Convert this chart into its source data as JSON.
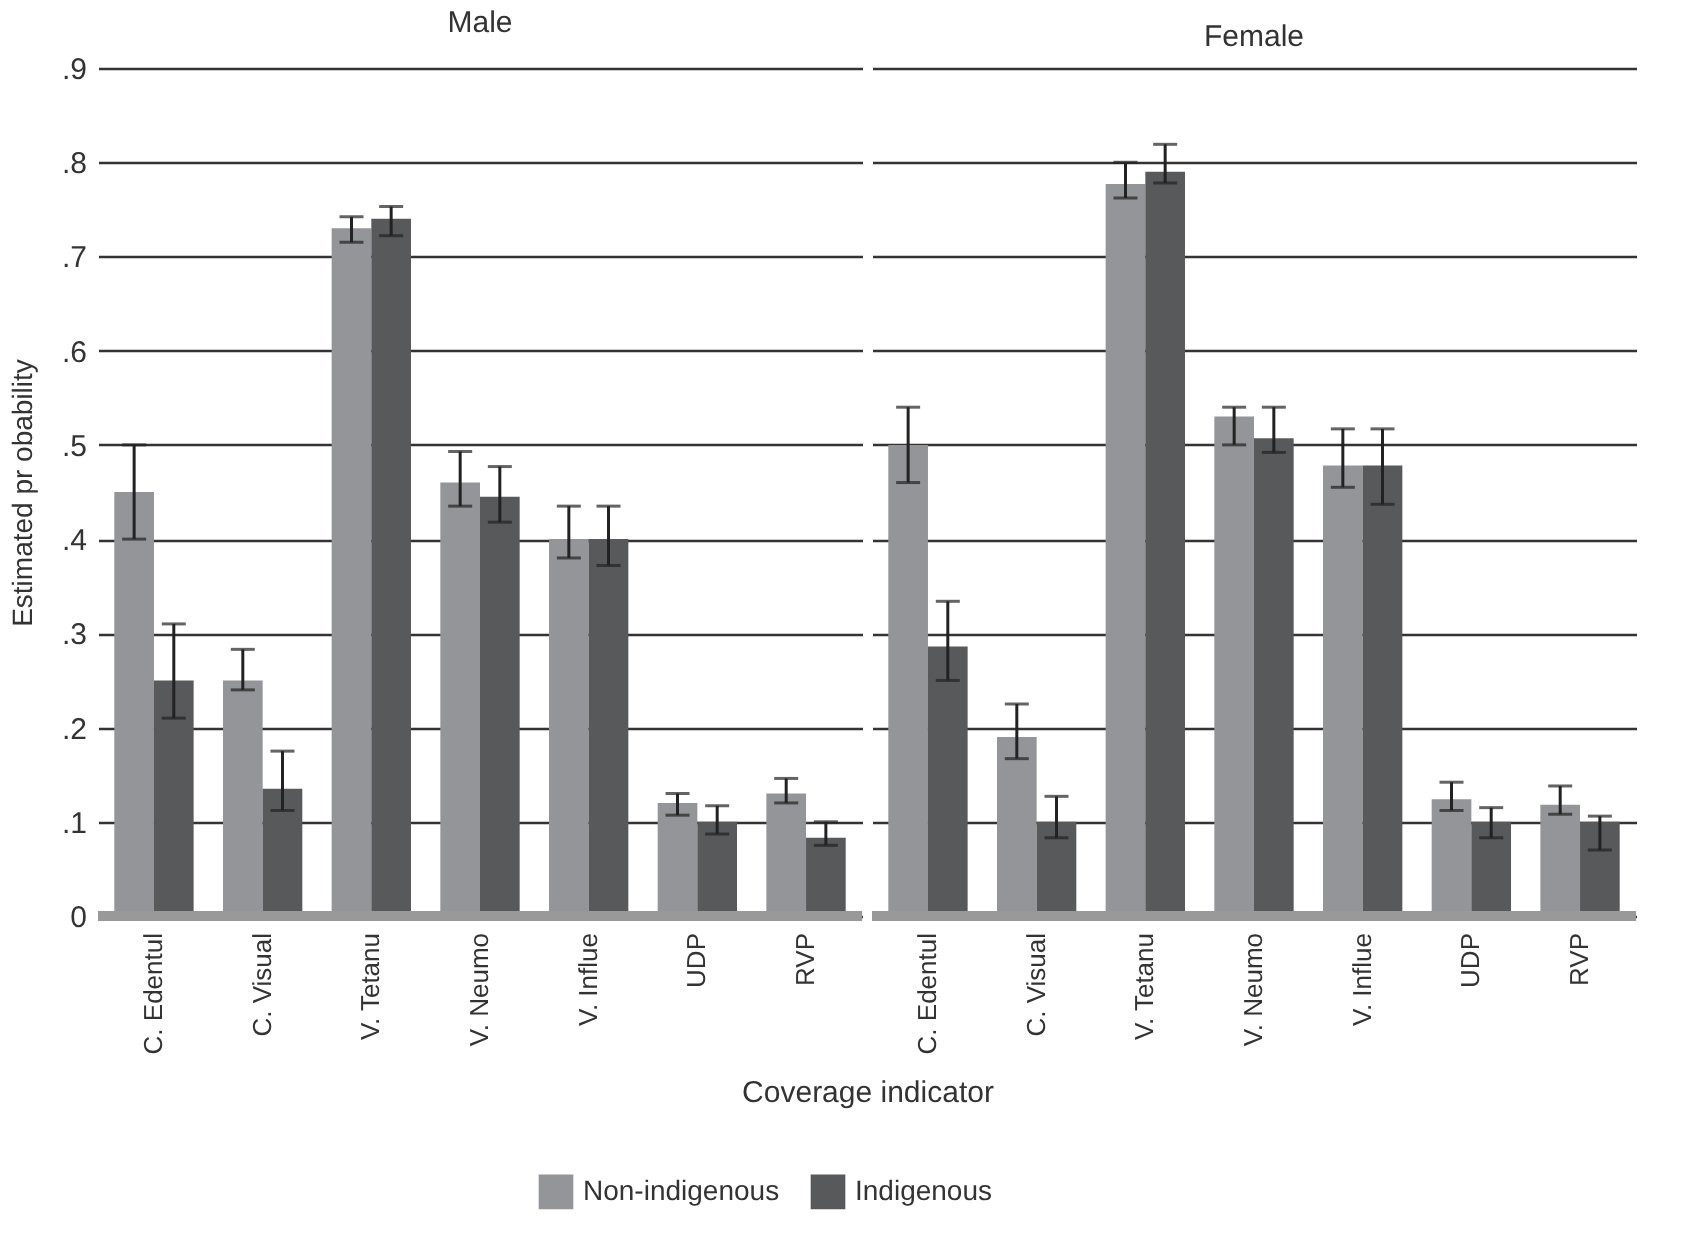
{
  "chart_data": [
    {
      "type": "bar",
      "title": "Male",
      "xlabel": "Coverage indicator",
      "ylabel": "Estimated pr obability",
      "categories": [
        "C. Edentul",
        "C. Visual",
        "V. Tetanu",
        "V. Neumo",
        "V. Influe",
        "UDP",
        "RVP"
      ],
      "series": [
        {
          "name": "Non-indigenous",
          "color": "#939598",
          "values": [
            0.45,
            0.25,
            0.73,
            0.46,
            0.4,
            0.12,
            0.13
          ],
          "errors": [
            [
              0.4,
              0.5
            ],
            [
              0.24,
              0.283
            ],
            [
              0.715,
              0.742
            ],
            [
              0.435,
              0.493
            ],
            [
              0.38,
              0.435
            ],
            [
              0.107,
              0.13
            ],
            [
              0.12,
              0.146
            ]
          ]
        },
        {
          "name": "Indigenous",
          "color": "#58595b",
          "values": [
            0.25,
            0.135,
            0.74,
            0.445,
            0.4,
            0.1,
            0.083
          ],
          "errors": [
            [
              0.21,
              0.31
            ],
            [
              0.112,
              0.175
            ],
            [
              0.722,
              0.753
            ],
            [
              0.418,
              0.477
            ],
            [
              0.372,
              0.435
            ],
            [
              0.087,
              0.117
            ],
            [
              0.075,
              0.1
            ]
          ]
        }
      ],
      "ylim": [
        0,
        0.9
      ],
      "yticks": [
        0,
        {
          "value": 0.1,
          "label": ".1"
        },
        {
          "value": 0.2,
          "label": ".2"
        },
        {
          "value": 0.3,
          "label": ".3"
        },
        {
          "value": 0.4,
          "label": ".4"
        },
        {
          "value": 0.5,
          "label": ".5"
        },
        {
          "value": 0.6,
          "label": ".6"
        },
        {
          "value": 0.7,
          "label": ".7"
        },
        {
          "value": 0.8,
          "label": ".8"
        },
        {
          "value": 0.9,
          "label": ".9"
        }
      ],
      "grid": "y",
      "legend": "bottom"
    },
    {
      "type": "bar",
      "title": "Female",
      "categories": [
        "C. Edentul",
        "C. Visual",
        "V. Tetanu",
        "V. Neumo",
        "V. Influe",
        "UDP",
        "RVP"
      ],
      "series": [
        {
          "name": "Non-indigenous",
          "color": "#939598",
          "values": [
            0.5,
            0.19,
            0.777,
            0.53,
            0.478,
            0.124,
            0.118
          ],
          "errors": [
            [
              0.46,
              0.54
            ],
            [
              0.167,
              0.225
            ],
            [
              0.762,
              0.8
            ],
            [
              0.5,
              0.54
            ],
            [
              0.455,
              0.517
            ],
            [
              0.112,
              0.142
            ],
            [
              0.108,
              0.138
            ]
          ]
        },
        {
          "name": "Indigenous",
          "color": "#58595b",
          "values": [
            0.286,
            0.1,
            0.79,
            0.507,
            0.478,
            0.1,
            0.1
          ],
          "errors": [
            [
              0.25,
              0.334
            ],
            [
              0.083,
              0.127
            ],
            [
              0.778,
              0.819
            ],
            [
              0.492,
              0.54
            ],
            [
              0.437,
              0.517
            ],
            [
              0.083,
              0.115
            ],
            [
              0.07,
              0.106
            ]
          ]
        }
      ],
      "ylim": [
        0,
        0.9
      ],
      "yticks": [
        0,
        0.1,
        0.2,
        0.3,
        0.4,
        0.5,
        0.6,
        0.7,
        0.8,
        0.9
      ],
      "grid": "y",
      "legend": "bottom",
      "tick_labels": "x"
    }
  ]
}
